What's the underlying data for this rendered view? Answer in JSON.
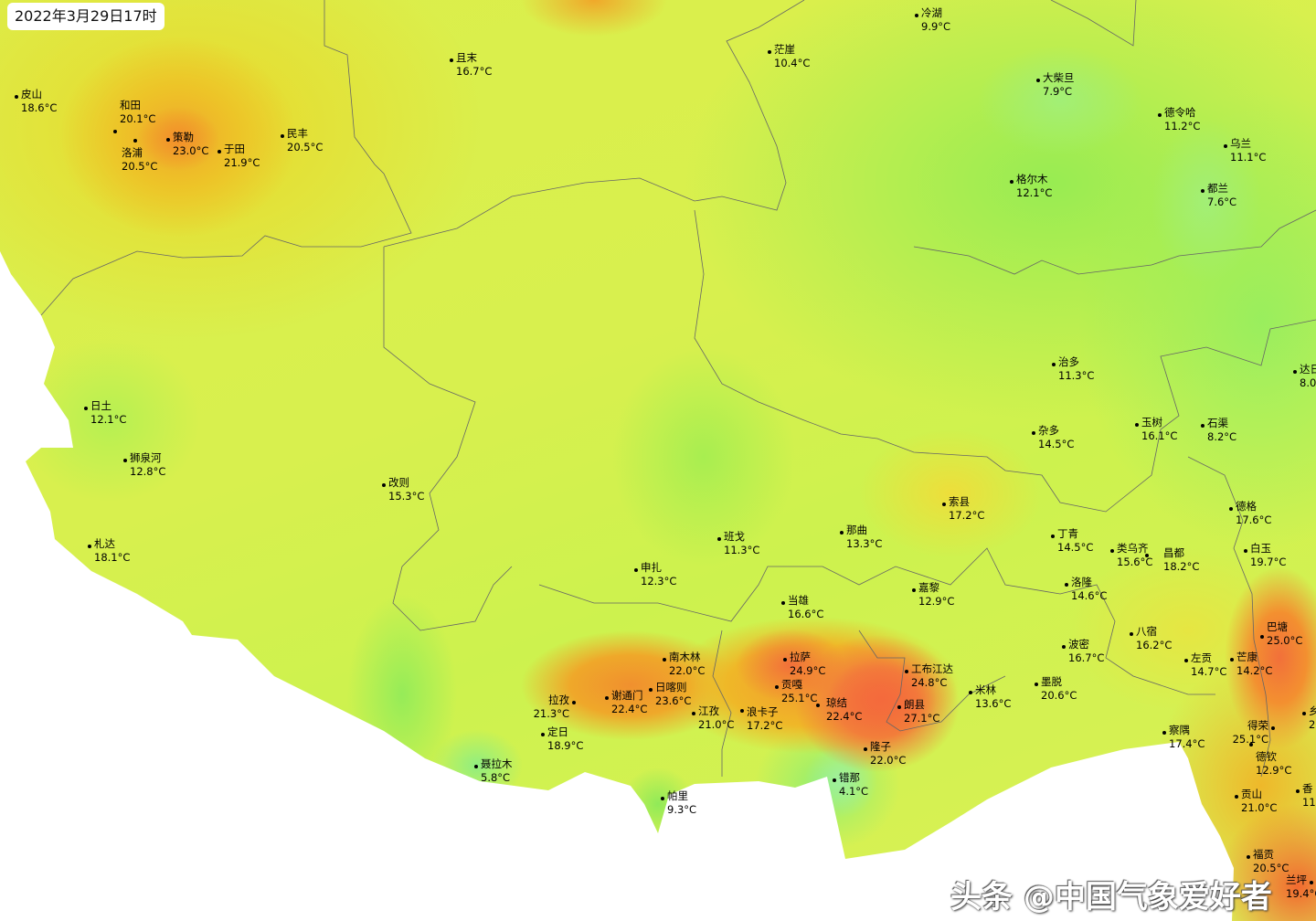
{
  "timestamp": "2022年3月29日17时",
  "watermark": "头条 @中国气象爱好者",
  "colors": {
    "cold": "#a0f0a0",
    "cool": "#98ec52",
    "mild": "#dcee4a",
    "warm": "#efb828",
    "hot": "#f2703a",
    "outside": "#ffffff"
  },
  "stations": [
    {
      "name": "",
      "temp": "19.4°C"
    },
    {
      "name": "皮山",
      "temp": "18.6°C"
    },
    {
      "name": "和田",
      "temp": "20.1°C"
    },
    {
      "name": "洛浦",
      "temp": "20.5°C"
    },
    {
      "name": "策勒",
      "temp": "23.0°C"
    },
    {
      "name": "于田",
      "temp": "21.9°C"
    },
    {
      "name": "民丰",
      "temp": "20.5°C"
    },
    {
      "name": "且末",
      "temp": "16.7°C"
    },
    {
      "name": "茫崖",
      "temp": "10.4°C"
    },
    {
      "name": "冷湖",
      "temp": "9.9°C"
    },
    {
      "name": "大柴旦",
      "temp": "7.9°C"
    },
    {
      "name": "德令哈",
      "temp": "11.2°C"
    },
    {
      "name": "乌兰",
      "temp": "11.1°C"
    },
    {
      "name": "格尔木",
      "temp": "12.1°C"
    },
    {
      "name": "都兰",
      "temp": "7.6°C"
    },
    {
      "name": "治多",
      "temp": "11.3°C"
    },
    {
      "name": "杂多",
      "temp": "14.5°C"
    },
    {
      "name": "玉树",
      "temp": "16.1°C"
    },
    {
      "name": "石渠",
      "temp": "8.2°C"
    },
    {
      "name": "达日",
      "temp": "8.0"
    },
    {
      "name": "日土",
      "temp": "12.1°C"
    },
    {
      "name": "狮泉河",
      "temp": "12.8°C"
    },
    {
      "name": "札达",
      "temp": "18.1°C"
    },
    {
      "name": "改则",
      "temp": "15.3°C"
    },
    {
      "name": "班戈",
      "temp": "11.3°C"
    },
    {
      "name": "那曲",
      "temp": "13.3°C"
    },
    {
      "name": "索县",
      "temp": "17.2°C"
    },
    {
      "name": "申扎",
      "temp": "12.3°C"
    },
    {
      "name": "当雄",
      "temp": "16.6°C"
    },
    {
      "name": "嘉黎",
      "temp": "12.9°C"
    },
    {
      "name": "丁青",
      "temp": "14.5°C"
    },
    {
      "name": "类乌齐",
      "temp": "15.6°C"
    },
    {
      "name": "昌都",
      "temp": "18.2°C"
    },
    {
      "name": "洛隆",
      "temp": "14.6°C"
    },
    {
      "name": "德格",
      "temp": "17.6°C"
    },
    {
      "name": "白玉",
      "temp": "19.7°C"
    },
    {
      "name": "巴塘",
      "temp": "25.0°C"
    },
    {
      "name": "八宿",
      "temp": "16.2°C"
    },
    {
      "name": "左贡",
      "temp": "14.7°C"
    },
    {
      "name": "芒康",
      "temp": "14.2°C"
    },
    {
      "name": "波密",
      "temp": "16.7°C"
    },
    {
      "name": "米林",
      "temp": "13.6°C"
    },
    {
      "name": "墨脱",
      "temp": "20.6°C"
    },
    {
      "name": "工布江达",
      "temp": "24.8°C"
    },
    {
      "name": "朗县",
      "temp": "27.1°C"
    },
    {
      "name": "拉萨",
      "temp": "24.9°C"
    },
    {
      "name": "贡嘎",
      "temp": "25.1°C"
    },
    {
      "name": "琼结",
      "temp": "22.4°C"
    },
    {
      "name": "浪卡子",
      "temp": "17.2°C"
    },
    {
      "name": "江孜",
      "temp": "21.0°C"
    },
    {
      "name": "南木林",
      "temp": "22.0°C"
    },
    {
      "name": "日喀则",
      "temp": "23.6°C"
    },
    {
      "name": "谢通门",
      "temp": "22.4°C"
    },
    {
      "name": "拉孜",
      "temp": "21.3°C"
    },
    {
      "name": "定日",
      "temp": "18.9°C"
    },
    {
      "name": "聂拉木",
      "temp": "5.8°C"
    },
    {
      "name": "帕里",
      "temp": "9.3°C"
    },
    {
      "name": "错那",
      "temp": "4.1°C"
    },
    {
      "name": "隆子",
      "temp": "22.0°C"
    },
    {
      "name": "察隅",
      "temp": "17.4°C"
    },
    {
      "name": "得荣",
      "temp": "25.1°C"
    },
    {
      "name": "德钦",
      "temp": "12.9°C"
    },
    {
      "name": "乡",
      "temp": "2"
    },
    {
      "name": "贡山",
      "temp": "21.0°C"
    },
    {
      "name": "香",
      "temp": "11."
    },
    {
      "name": "福贡",
      "temp": "20.5°C"
    },
    {
      "name": "兰坪",
      "temp": "19.4°C"
    }
  ]
}
